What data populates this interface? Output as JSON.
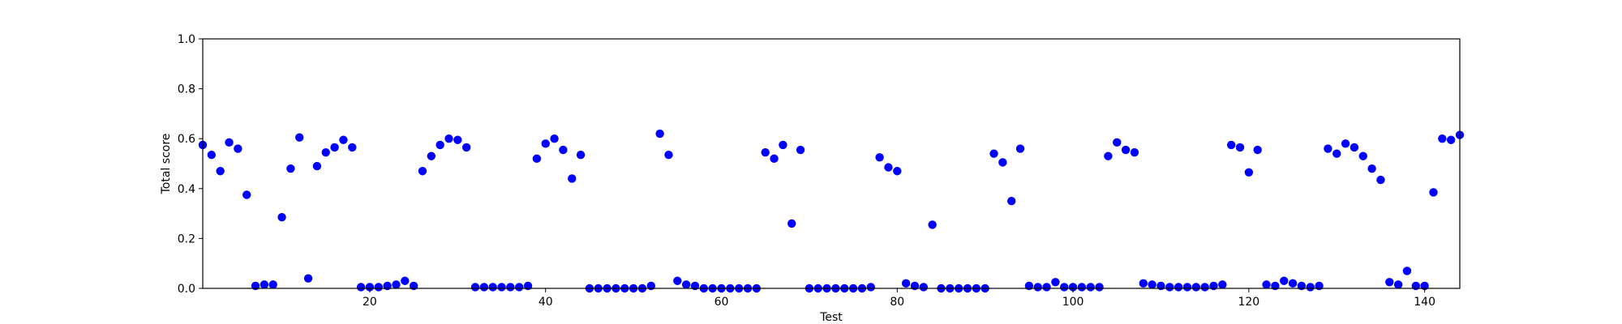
{
  "chart_data": {
    "type": "scatter",
    "xlabel": "Test",
    "ylabel": "Total score",
    "xlim": [
      1,
      144
    ],
    "ylim": [
      0.0,
      1.0
    ],
    "xticks": [
      20,
      40,
      60,
      80,
      100,
      120,
      140
    ],
    "xtick_labels": [
      "20",
      "40",
      "60",
      "80",
      "100",
      "120",
      "140"
    ],
    "yticks": [
      0.0,
      0.2,
      0.4,
      0.6,
      0.8,
      1.0
    ],
    "ytick_labels": [
      "0.0",
      "0.2",
      "0.4",
      "0.6",
      "0.8",
      "1.0"
    ],
    "grid": false,
    "marker_color": "#0000ff",
    "x": [
      1,
      2,
      3,
      4,
      5,
      6,
      7,
      8,
      9,
      10,
      11,
      12,
      13,
      14,
      15,
      16,
      17,
      18,
      19,
      20,
      21,
      22,
      23,
      24,
      25,
      26,
      27,
      28,
      29,
      30,
      31,
      32,
      33,
      34,
      35,
      36,
      37,
      38,
      39,
      40,
      41,
      42,
      43,
      44,
      45,
      46,
      47,
      48,
      49,
      50,
      51,
      52,
      53,
      54,
      55,
      56,
      57,
      58,
      59,
      60,
      61,
      62,
      63,
      64,
      65,
      66,
      67,
      68,
      69,
      70,
      71,
      72,
      73,
      74,
      75,
      76,
      77,
      78,
      79,
      80,
      81,
      82,
      83,
      84,
      85,
      86,
      87,
      88,
      89,
      90,
      91,
      92,
      93,
      94,
      95,
      96,
      97,
      98,
      99,
      100,
      101,
      102,
      103,
      104,
      105,
      106,
      107,
      108,
      109,
      110,
      111,
      112,
      113,
      114,
      115,
      116,
      117,
      118,
      119,
      120,
      121,
      122,
      123,
      124,
      125,
      126,
      127,
      128,
      129,
      130,
      131,
      132,
      133,
      134,
      135,
      136,
      137,
      138,
      139,
      140,
      141,
      142,
      143,
      144
    ],
    "y": [
      0.575,
      0.535,
      0.47,
      0.585,
      0.56,
      0.375,
      0.01,
      0.015,
      0.015,
      0.285,
      0.48,
      0.605,
      0.04,
      0.49,
      0.545,
      0.565,
      0.595,
      0.565,
      0.005,
      0.005,
      0.005,
      0.01,
      0.015,
      0.03,
      0.01,
      0.47,
      0.53,
      0.575,
      0.6,
      0.595,
      0.565,
      0.005,
      0.005,
      0.005,
      0.005,
      0.005,
      0.005,
      0.01,
      0.52,
      0.58,
      0.6,
      0.555,
      0.44,
      0.535,
      0.0,
      0.0,
      0.0,
      0.0,
      0.0,
      0.0,
      0.0,
      0.01,
      0.62,
      0.535,
      0.03,
      0.015,
      0.01,
      0.0,
      0.0,
      0.0,
      0.0,
      0.0,
      0.0,
      0.0,
      0.545,
      0.52,
      0.575,
      0.26,
      0.555,
      0.0,
      0.0,
      0.0,
      0.0,
      0.0,
      0.0,
      0.0,
      0.005,
      0.525,
      0.485,
      0.47,
      0.02,
      0.01,
      0.005,
      0.255,
      0.0,
      0.0,
      0.0,
      0.0,
      0.0,
      0.0,
      0.54,
      0.505,
      0.35,
      0.56,
      0.01,
      0.005,
      0.005,
      0.025,
      0.005,
      0.005,
      0.005,
      0.005,
      0.005,
      0.53,
      0.585,
      0.555,
      0.545,
      0.02,
      0.015,
      0.01,
      0.005,
      0.005,
      0.005,
      0.005,
      0.005,
      0.01,
      0.015,
      0.575,
      0.565,
      0.465,
      0.555,
      0.015,
      0.01,
      0.03,
      0.02,
      0.01,
      0.005,
      0.01,
      0.56,
      0.54,
      0.58,
      0.565,
      0.53,
      0.48,
      0.435,
      0.025,
      0.015,
      0.07,
      0.01,
      0.01,
      0.385,
      0.6,
      0.595,
      0.615
    ]
  }
}
